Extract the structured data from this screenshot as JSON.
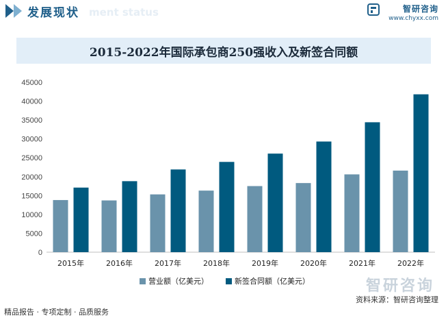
{
  "header": {
    "title": "发展现状",
    "ghost_text": "ment status",
    "brand_name": "智研咨询",
    "brand_url": "www.chyxx.com"
  },
  "colors": {
    "series1": "#6a93ab",
    "series2": "#005a7f",
    "title_bg": "#e2eef8",
    "header_blue": "#1f5f8a"
  },
  "chart_data": {
    "type": "bar",
    "title": "2015-2022年国际承包商250强收入及新签合同额",
    "categories": [
      "2015年",
      "2016年",
      "2017年",
      "2018年",
      "2019年",
      "2020年",
      "2021年",
      "2022年"
    ],
    "series": [
      {
        "name": "营业额（亿美元）",
        "values": [
          13800,
          13700,
          15300,
          16300,
          17500,
          18300,
          20600,
          21600
        ]
      },
      {
        "name": "新签合同额（亿美元）",
        "values": [
          17100,
          18800,
          21900,
          23900,
          26100,
          29300,
          34400,
          41800
        ]
      }
    ],
    "ylim": [
      0,
      45000
    ],
    "yticks": [
      0,
      5000,
      10000,
      15000,
      20000,
      25000,
      30000,
      35000,
      40000,
      45000
    ],
    "legend_position": "bottom"
  },
  "footer": {
    "left": "精品报告 · 专项定制 · 品质服务",
    "source": "资料来源：智研咨询整理",
    "watermark": "智研咨询"
  }
}
